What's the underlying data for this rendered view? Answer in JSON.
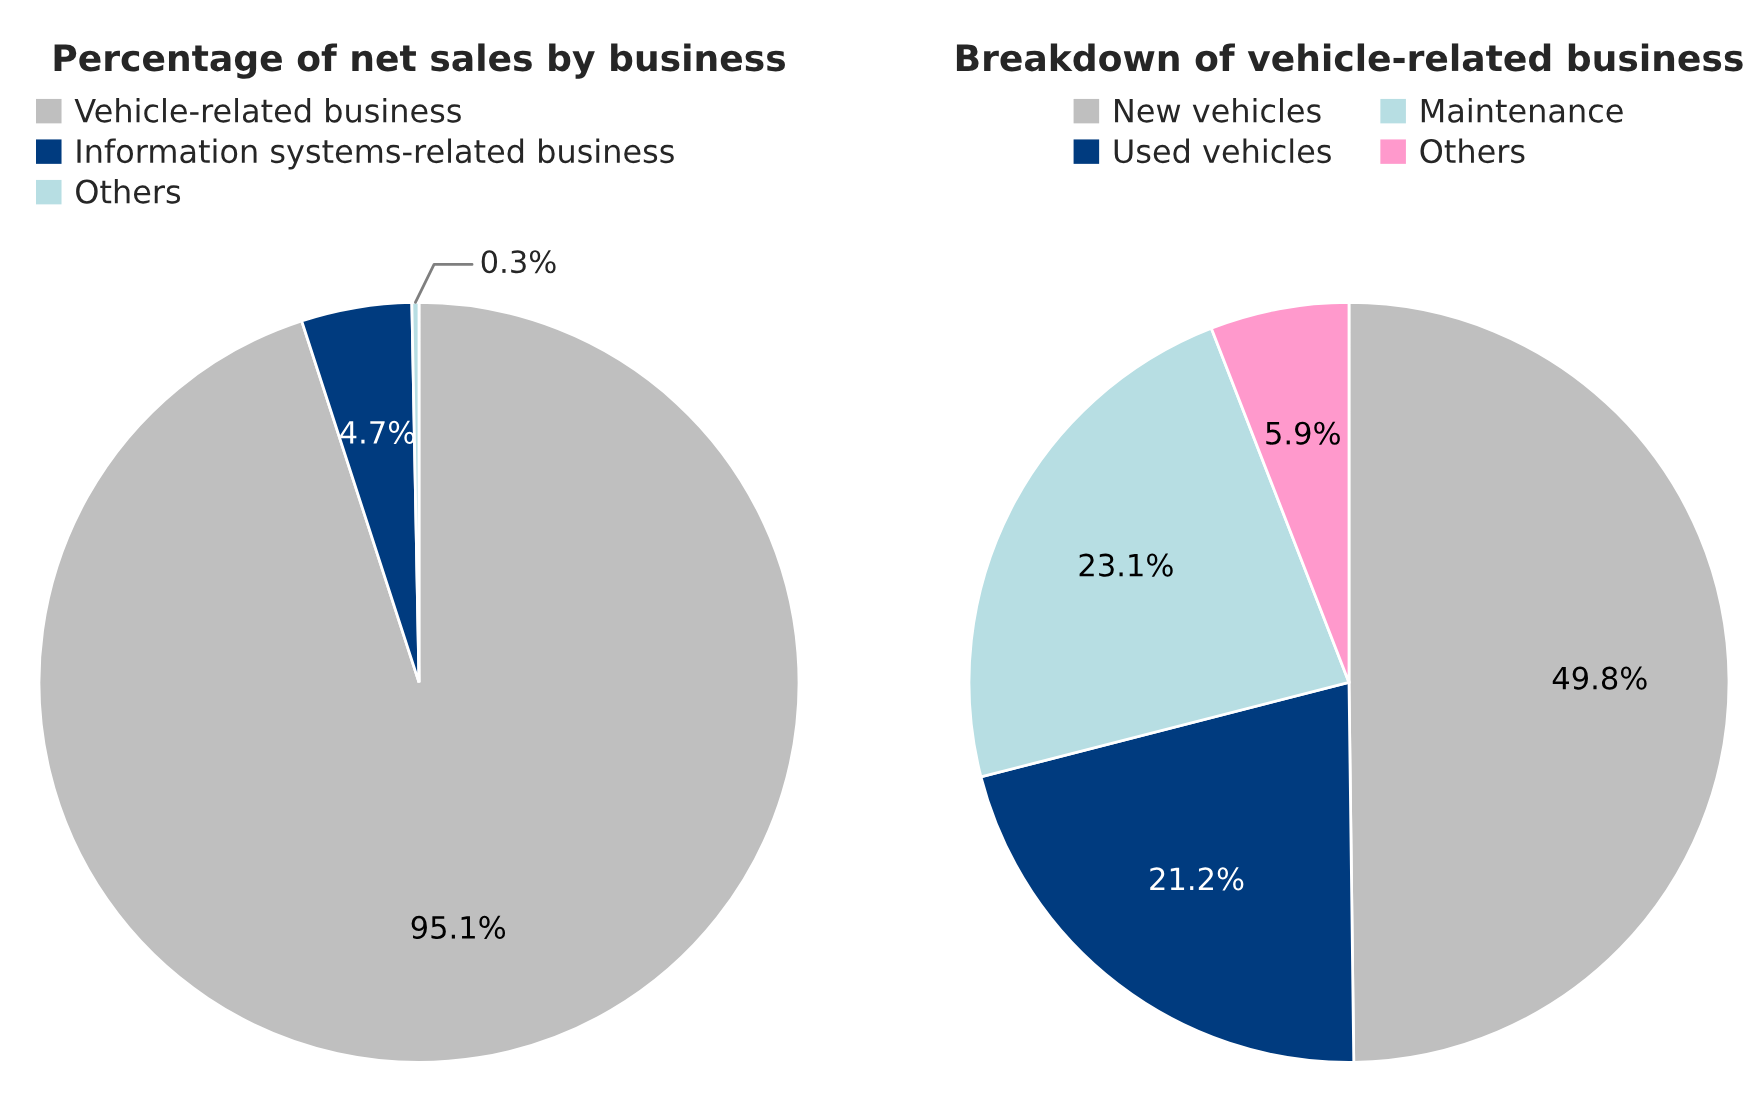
{
  "chart_data": [
    {
      "type": "pie",
      "title": "Percentage of net sales by business",
      "categories": [
        "Vehicle-related business",
        "Information systems-related business",
        "Others"
      ],
      "values": [
        95.1,
        4.7,
        0.3
      ],
      "value_labels": [
        "95.1%",
        "4.7%",
        "0.3%"
      ],
      "colors": [
        "#bfbfbf",
        "#003b7f",
        "#b7dee3"
      ],
      "legend": "top left"
    },
    {
      "type": "pie",
      "title": "Breakdown of vehicle-related business",
      "categories": [
        "New vehicles",
        "Used vehicles",
        "Maintenance",
        "Others"
      ],
      "values": [
        49.8,
        21.2,
        23.1,
        5.9
      ],
      "value_labels": [
        "49.8%",
        "21.2%",
        "23.1%",
        "5.9%"
      ],
      "colors": [
        "#bfbfbf",
        "#003b7f",
        "#b7dee3",
        "#ff99cc"
      ],
      "legend": "top"
    }
  ]
}
